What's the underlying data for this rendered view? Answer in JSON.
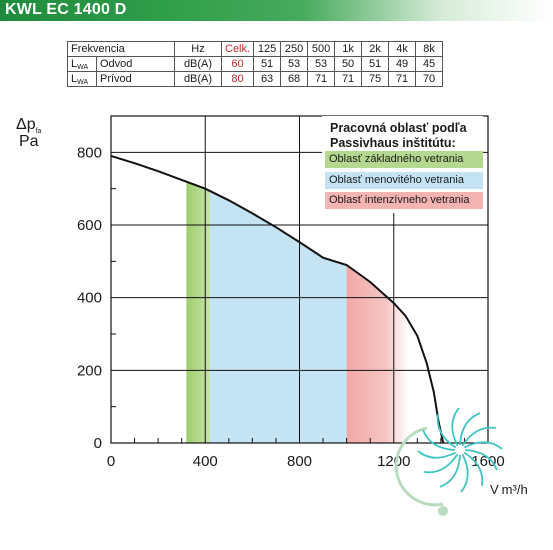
{
  "header": {
    "title": "KWL EC 1400 D"
  },
  "noise_table": {
    "header": [
      "Frekvencia",
      "Hz",
      "Celk.",
      "125",
      "250",
      "500",
      "1k",
      "2k",
      "4k",
      "8k"
    ],
    "rows": [
      {
        "l_main": "L",
        "l_sub": "WA",
        "name": "Odvod",
        "unit": "dB(A)",
        "total": "60",
        "values": [
          "51",
          "53",
          "53",
          "50",
          "51",
          "49",
          "45"
        ]
      },
      {
        "l_main": "L",
        "l_sub": "WA",
        "name": "Prívod",
        "unit": "dB(A)",
        "total": "80",
        "values": [
          "63",
          "68",
          "71",
          "71",
          "75",
          "71",
          "70"
        ]
      }
    ]
  },
  "chart_data": {
    "type": "line",
    "ylabel_main": "Δp",
    "ylabel_sub": "fa",
    "ylabel_unit": "Pa",
    "xlabel_prefix": "V",
    "xlabel_unit": "m³/h",
    "xlim": [
      0,
      1600
    ],
    "ylim": [
      0,
      900
    ],
    "xticks": [
      0,
      400,
      800,
      1200,
      1600
    ],
    "xtick_labels": [
      "0",
      "400",
      "800",
      "1200",
      "1600"
    ],
    "yticks": [
      0,
      200,
      400,
      600,
      800
    ],
    "ytick_labels": [
      "0",
      "200",
      "400",
      "600",
      "800"
    ],
    "grid": true,
    "series": [
      {
        "x": [
          0,
          100,
          200,
          300,
          400,
          500,
          600,
          700,
          800,
          900,
          1000,
          1100,
          1200,
          1250,
          1300,
          1340,
          1370,
          1390,
          1410
        ],
        "y": [
          790,
          770,
          748,
          724,
          700,
          668,
          632,
          594,
          553,
          510,
          490,
          443,
          385,
          350,
          295,
          220,
          140,
          60,
          0
        ]
      }
    ],
    "zones": [
      {
        "label": "Oblasť základného vetrania",
        "x_from": 320,
        "x_to": 420,
        "color": "#b5d890"
      },
      {
        "label": "Oblasť menovitého vetrania",
        "x_from": 420,
        "x_to": 1000,
        "color": "#c4e4f4"
      },
      {
        "label": "Oblasť intenzívneho vetrania",
        "x_from": 1000,
        "x_to": 1260,
        "color": "#f3b4b2"
      }
    ],
    "legend": {
      "title_line1": "Pracovná oblasť podľa",
      "title_line2": "Passivhaus inštitútu:",
      "placement": "top-right"
    }
  },
  "colors": {
    "brand_green": "#1f8a3d",
    "curve": "#111111",
    "logo_teal": "#3fc4c4",
    "logo_green": "#b9dcc0",
    "value_red": "#c8282e"
  },
  "logo": {
    "icon": "fan-swirl-logo-icon"
  }
}
